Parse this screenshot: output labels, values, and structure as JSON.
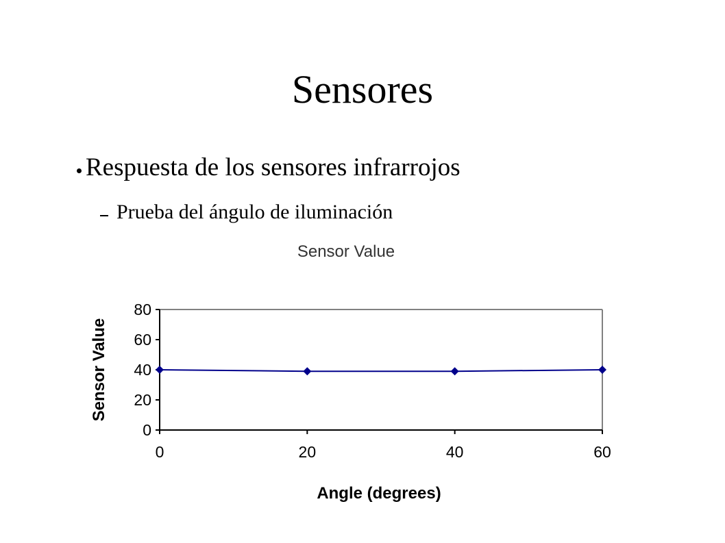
{
  "slide": {
    "title": "Sensores",
    "bullet": "Respuesta de los sensores infrarrojos",
    "sub_bullet": "Prueba del ángulo de iluminación"
  },
  "chart_data": {
    "type": "line",
    "title": "Sensor Value",
    "xlabel": "Angle (degrees)",
    "ylabel": "Sensor Value",
    "x": [
      0,
      20,
      40,
      60
    ],
    "series": [
      {
        "values": [
          40,
          39,
          39,
          40
        ],
        "color": "#00008b"
      }
    ],
    "xlim": [
      0,
      60
    ],
    "ylim": [
      0,
      80
    ],
    "xticks": [
      0,
      20,
      40,
      60
    ],
    "yticks": [
      0,
      20,
      40,
      60,
      80
    ],
    "grid": false,
    "legend": "none"
  }
}
